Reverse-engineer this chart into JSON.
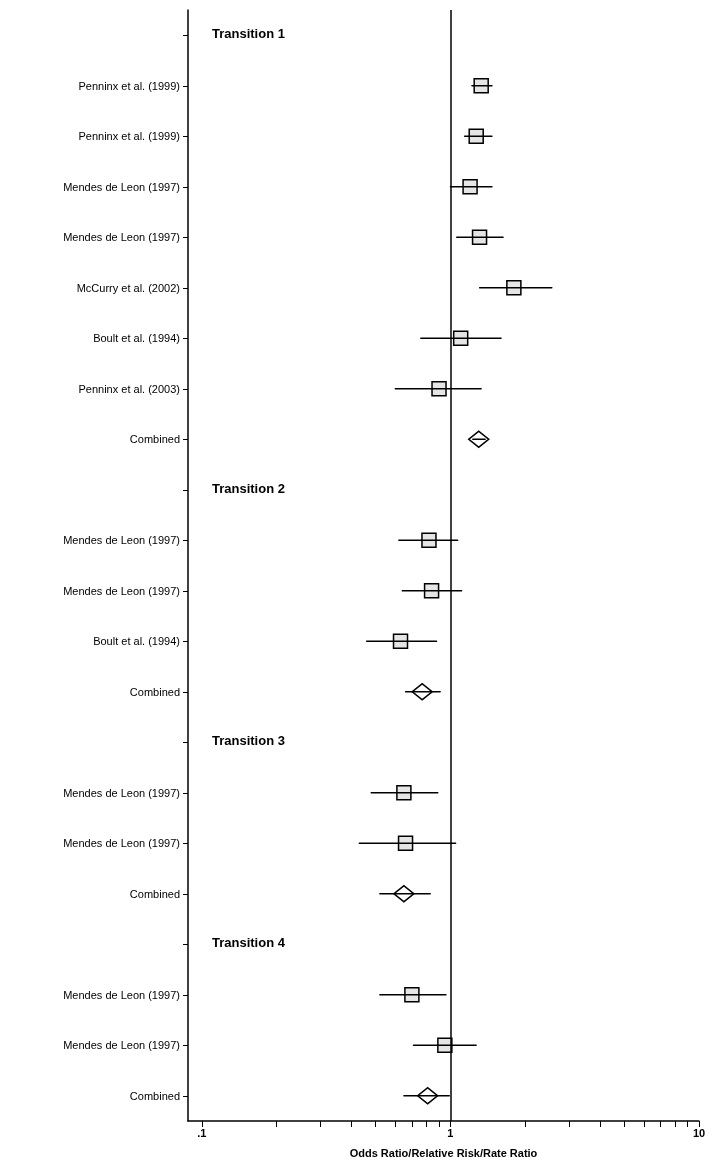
{
  "chart_data": {
    "type": "scatter",
    "orientation": "horizontal",
    "log": "x",
    "xlabel": "Odds Ratio/Relative Risk/Rate Ratio",
    "annotations": [
      "Transition 1",
      "Transition 2",
      "Transition 3",
      "Transition 4"
    ],
    "categories": [
      null,
      "Penninx et al. (1999)",
      "Penninx et al. (1999)",
      "Mendes de Leon (1997)",
      "Mendes de Leon (1997)",
      "McCurry et al. (2002)",
      "Boult et al. (1994)",
      "Penninx et al. (2003)",
      "Combined",
      null,
      "Mendes de Leon (1997)",
      "Mendes de Leon (1997)",
      "Boult et al. (1994)",
      "Combined",
      null,
      "Mendes de Leon (1997)",
      "Mendes de Leon (1997)",
      "Combined",
      null,
      "Mendes de Leon (1997)",
      "Mendes de Leon (1997)",
      "Combined"
    ],
    "series": [
      {
        "color": "#e5e5e5",
        "marker": "square",
        "values": [
          null,
          1.33,
          1.27,
          1.2,
          1.31,
          1.8,
          1.1,
          0.9,
          null,
          null,
          0.82,
          0.84,
          0.63,
          null,
          null,
          0.65,
          0.66,
          null,
          null,
          0.7,
          0.95,
          null
        ],
        "errors": [
          null,
          [
            1.22,
            1.47
          ],
          [
            1.14,
            1.47
          ],
          [
            1.0,
            1.47
          ],
          [
            1.06,
            1.63
          ],
          [
            1.31,
            2.56
          ],
          [
            0.76,
            1.6
          ],
          [
            0.6,
            1.33
          ],
          null,
          null,
          [
            0.62,
            1.07
          ],
          [
            0.64,
            1.11
          ],
          [
            0.46,
            0.88
          ],
          null,
          null,
          [
            0.48,
            0.89
          ],
          [
            0.43,
            1.05
          ],
          null,
          null,
          [
            0.52,
            0.96
          ],
          [
            0.71,
            1.27
          ],
          null
        ]
      },
      {
        "color": "#ffffff",
        "marker": "diamond",
        "values": [
          null,
          null,
          null,
          null,
          null,
          null,
          null,
          null,
          1.3,
          null,
          null,
          null,
          null,
          0.77,
          null,
          null,
          null,
          0.65,
          null,
          null,
          null,
          0.81
        ],
        "errors": [
          null,
          null,
          null,
          null,
          null,
          null,
          null,
          null,
          [
            1.23,
            1.38
          ],
          null,
          null,
          null,
          null,
          [
            0.66,
            0.91
          ],
          null,
          null,
          null,
          [
            0.52,
            0.83
          ],
          null,
          null,
          null,
          [
            0.65,
            0.99
          ]
        ]
      }
    ],
    "xlim": [
      0.088,
      10
    ],
    "xticks": [
      {
        "value": 0.1,
        "label": ".1"
      },
      {
        "value": 0.2,
        "label": null
      },
      {
        "value": 0.3,
        "label": null
      },
      {
        "value": 0.4,
        "label": null
      },
      {
        "value": 0.5,
        "label": null
      },
      {
        "value": 0.6,
        "label": null
      },
      {
        "value": 0.7,
        "label": null
      },
      {
        "value": 0.8,
        "label": null
      },
      {
        "value": 0.9,
        "label": null
      },
      1,
      {
        "value": 2,
        "label": null
      },
      {
        "value": 3,
        "label": null
      },
      {
        "value": 4,
        "label": null
      },
      {
        "value": 5,
        "label": null
      },
      {
        "value": 6,
        "label": null
      },
      {
        "value": 7,
        "label": null
      },
      {
        "value": 8,
        "label": null
      },
      {
        "value": 9,
        "label": null
      },
      10
    ],
    "ref_lines": [
      {
        "axis": "x",
        "value": 1
      }
    ]
  }
}
